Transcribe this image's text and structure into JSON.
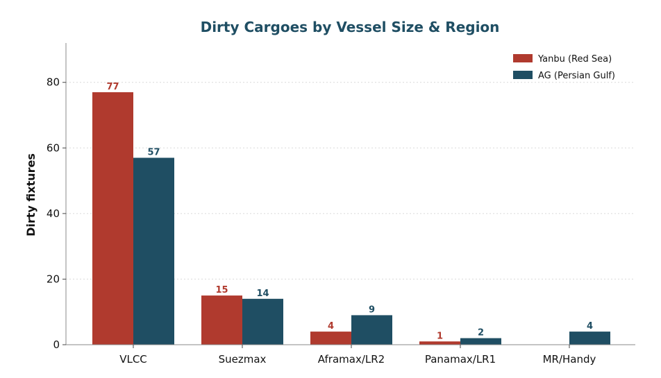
{
  "chart_data": {
    "type": "bar",
    "title": "Dirty Cargoes by Vessel Size & Region",
    "xlabel": "",
    "ylabel": "Dirty fixtures",
    "categories": [
      "VLCC",
      "Suezmax",
      "Aframax/LR2",
      "Panamax/LR1",
      "MR/Handy"
    ],
    "series": [
      {
        "name": "Yanbu (Red Sea)",
        "values": [
          77,
          15,
          4,
          1,
          0
        ],
        "labels": [
          "77",
          "15",
          "4",
          "1",
          ""
        ],
        "color": "#b03a2e"
      },
      {
        "name": "AG (Persian Gulf)",
        "values": [
          57,
          14,
          9,
          2,
          4
        ],
        "labels": [
          "57",
          "14",
          "9",
          "2",
          "4"
        ],
        "color": "#1f4e63"
      }
    ],
    "ylim": [
      0,
      92
    ],
    "yticks": [
      0,
      20,
      40,
      60,
      80
    ],
    "ytick_labels": [
      "0",
      "20",
      "40",
      "60",
      "80"
    ],
    "grid": true,
    "legend_position": "top-right",
    "title_color": "#1f4e63"
  }
}
